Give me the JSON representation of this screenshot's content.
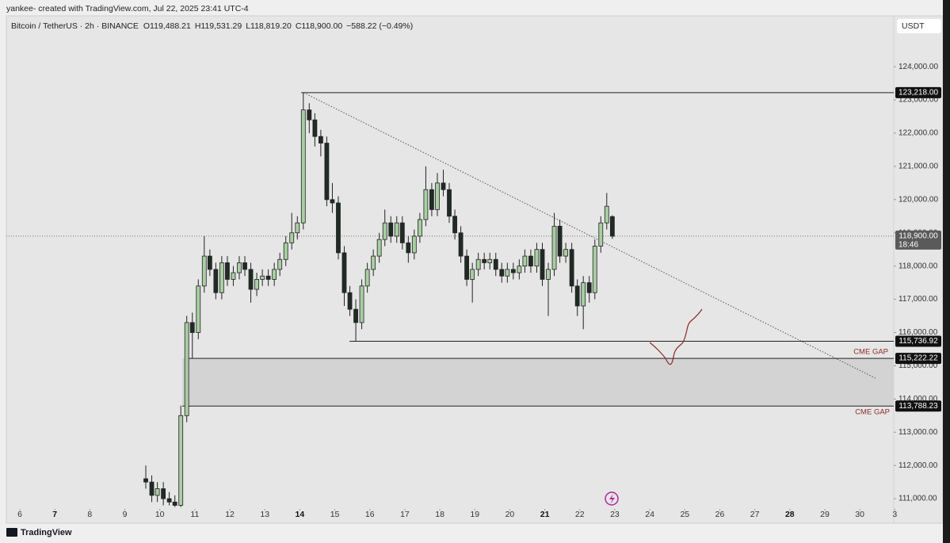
{
  "header": {
    "attribution": "yankee- created with TradingView.com, Jul 22, 2025 23:41 UTC-4",
    "brand": "TradingView"
  },
  "chart_data": {
    "type": "candlestick",
    "symbol": "Bitcoin / TetherUS · 2h · BINANCE",
    "legend_values": [
      "O119,488.21",
      "H119,531.29",
      "L118,819.20",
      "C118,900.00",
      "−588.22 (−0.49%)"
    ],
    "currency": "USDT",
    "x": [
      9.6,
      9.77,
      9.93,
      10.1,
      10.27,
      10.43,
      10.6,
      10.77,
      10.93,
      11.1,
      11.27,
      11.43,
      11.6,
      11.77,
      11.93,
      12.1,
      12.27,
      12.43,
      12.6,
      12.77,
      12.93,
      13.1,
      13.27,
      13.43,
      13.6,
      13.77,
      13.93,
      14.1,
      14.27,
      14.43,
      14.6,
      14.77,
      14.93,
      15.1,
      15.27,
      15.43,
      15.6,
      15.77,
      15.93,
      16.1,
      16.27,
      16.43,
      16.6,
      16.77,
      16.93,
      17.1,
      17.27,
      17.43,
      17.6,
      17.77,
      17.93,
      18.1,
      18.27,
      18.43,
      18.6,
      18.77,
      18.93,
      19.1,
      19.27,
      19.43,
      19.6,
      19.77,
      19.93,
      20.1,
      20.27,
      20.43,
      20.6,
      20.77,
      20.93,
      21.1,
      21.27,
      21.43,
      21.6,
      21.77,
      21.93,
      22.1,
      22.27,
      22.43,
      22.6,
      22.77,
      22.93
    ],
    "open": [
      111600,
      111500,
      111100,
      111300,
      111000,
      110900,
      110800,
      113500,
      116300,
      116000,
      117400,
      118300,
      117900,
      117200,
      118100,
      117600,
      117800,
      118100,
      117900,
      117300,
      117600,
      117700,
      117600,
      117900,
      118200,
      118700,
      119000,
      119300,
      122700,
      122400,
      121900,
      121700,
      120000,
      119900,
      118400,
      117200,
      116700,
      116300,
      117400,
      117900,
      118300,
      118800,
      119300,
      118900,
      119300,
      118700,
      118400,
      118900,
      119400,
      120300,
      119700,
      120500,
      120300,
      119500,
      119000,
      118300,
      117600,
      117900,
      118200,
      118100,
      118200,
      117900,
      117700,
      117900,
      117800,
      118000,
      118300,
      118000,
      118500,
      117600,
      117900,
      119200,
      118300,
      118500,
      117400,
      116800,
      117500,
      117200,
      118600,
      119300,
      119488.21
    ],
    "high": [
      112000,
      111700,
      111500,
      111500,
      111200,
      111100,
      113800,
      116500,
      116600,
      117600,
      118900,
      118500,
      118100,
      118300,
      118300,
      118000,
      118300,
      118300,
      118100,
      117800,
      117900,
      117900,
      118100,
      118400,
      118900,
      119600,
      119500,
      123218,
      122900,
      122600,
      122100,
      121900,
      120500,
      120100,
      118600,
      117400,
      117000,
      117600,
      118100,
      118500,
      119000,
      119700,
      119500,
      119500,
      119500,
      118900,
      119100,
      119600,
      121000,
      120500,
      120800,
      120900,
      120500,
      119700,
      119200,
      118500,
      118100,
      118400,
      118400,
      118400,
      118400,
      118100,
      118100,
      118100,
      118200,
      118500,
      118500,
      118700,
      118700,
      118100,
      119600,
      119400,
      118700,
      118700,
      117600,
      117700,
      117700,
      118800,
      119500,
      120200,
      119531.29
    ],
    "low": [
      111300,
      110900,
      110900,
      110800,
      110800,
      110750,
      110750,
      113300,
      115222,
      115800,
      117200,
      117700,
      117000,
      117000,
      117400,
      117400,
      117600,
      117700,
      116900,
      117100,
      117400,
      117400,
      117400,
      117700,
      118000,
      118500,
      118800,
      119100,
      122000,
      121600,
      121300,
      119800,
      119600,
      118200,
      116800,
      116500,
      115737,
      116100,
      117200,
      117700,
      118100,
      118600,
      118700,
      118700,
      118500,
      118100,
      118200,
      118700,
      119200,
      119500,
      119500,
      120100,
      119300,
      118800,
      118100,
      117400,
      116900,
      117700,
      117900,
      117900,
      117700,
      117500,
      117500,
      117600,
      117600,
      117800,
      117800,
      117800,
      117400,
      116500,
      117700,
      118100,
      118100,
      117200,
      116500,
      116100,
      116900,
      117000,
      118400,
      119100,
      118819.2
    ],
    "close": [
      111500,
      111100,
      111300,
      111000,
      110900,
      110800,
      113500,
      116300,
      116000,
      117400,
      118300,
      117900,
      117200,
      118100,
      117600,
      117800,
      118100,
      117900,
      117300,
      117600,
      117700,
      117600,
      117900,
      118200,
      118700,
      119000,
      119300,
      122700,
      122400,
      121900,
      121700,
      120000,
      119900,
      118400,
      117200,
      116700,
      116300,
      117400,
      117900,
      118300,
      118800,
      119300,
      118900,
      119300,
      118700,
      118400,
      118900,
      119400,
      120300,
      119700,
      120500,
      120300,
      119500,
      119000,
      118300,
      117600,
      117900,
      118200,
      118100,
      118200,
      117900,
      117700,
      117900,
      117800,
      118000,
      118300,
      118000,
      118500,
      117600,
      117900,
      119200,
      118300,
      118500,
      117400,
      116800,
      117500,
      117200,
      118600,
      119300,
      119800,
      118900
    ],
    "up_color": "#a9cfa3",
    "down_color": "#1f2b24",
    "xlim": [
      5.615,
      30.97
    ],
    "xticks": [
      6,
      7,
      8,
      9,
      10,
      11,
      12,
      13,
      14,
      15,
      16,
      17,
      18,
      19,
      20,
      21,
      22,
      23,
      24,
      25,
      26,
      27,
      28,
      29,
      30,
      {
        "value": 31,
        "label": "3"
      }
    ],
    "xticks_bold": [
      7,
      14,
      21,
      28
    ],
    "ylim": [
      110740,
      125530
    ],
    "yticks": [
      {
        "value": 111000,
        "label": "111,000.00"
      },
      {
        "value": 112000,
        "label": "112,000.00"
      },
      {
        "value": 113000,
        "label": "113,000.00"
      },
      {
        "value": 114000,
        "label": "114,000.00"
      },
      {
        "value": 115000,
        "label": "115,000.00"
      },
      {
        "value": 116000,
        "label": "116,000.00"
      },
      {
        "value": 117000,
        "label": "117,000.00"
      },
      {
        "value": 118000,
        "label": "118,000.00"
      },
      {
        "value": 119000,
        "label": "119,000.00"
      },
      {
        "value": 120000,
        "label": "120,000.00"
      },
      {
        "value": 121000,
        "label": "121,000.00"
      },
      {
        "value": 122000,
        "label": "122,000.00"
      },
      {
        "value": 123000,
        "label": "123,000.00"
      },
      {
        "value": 124000,
        "label": "124,000.00"
      }
    ],
    "last_price": {
      "value": 118900,
      "label": "118,900.00",
      "countdown": "18:46"
    },
    "levels": [
      {
        "value": 123218,
        "label": "123,218.00",
        "x_start": 14.04
      },
      {
        "value": 115736.92,
        "label": "115,736.92",
        "x_start": 15.42
      },
      {
        "value": 115222.22,
        "label": "115,222.22",
        "x_start": 10.8
      },
      {
        "value": 113788.23,
        "label": "113,788.23",
        "x_start": 10.64
      }
    ],
    "gap": {
      "top": 115222.22,
      "bottom": 113788.23,
      "x_start": 10.64,
      "labels": [
        "CME GAP",
        "CME GAP"
      ]
    },
    "trendline": {
      "x": [
        14.11,
        30.45
      ],
      "y": [
        123218,
        114625
      ]
    }
  }
}
